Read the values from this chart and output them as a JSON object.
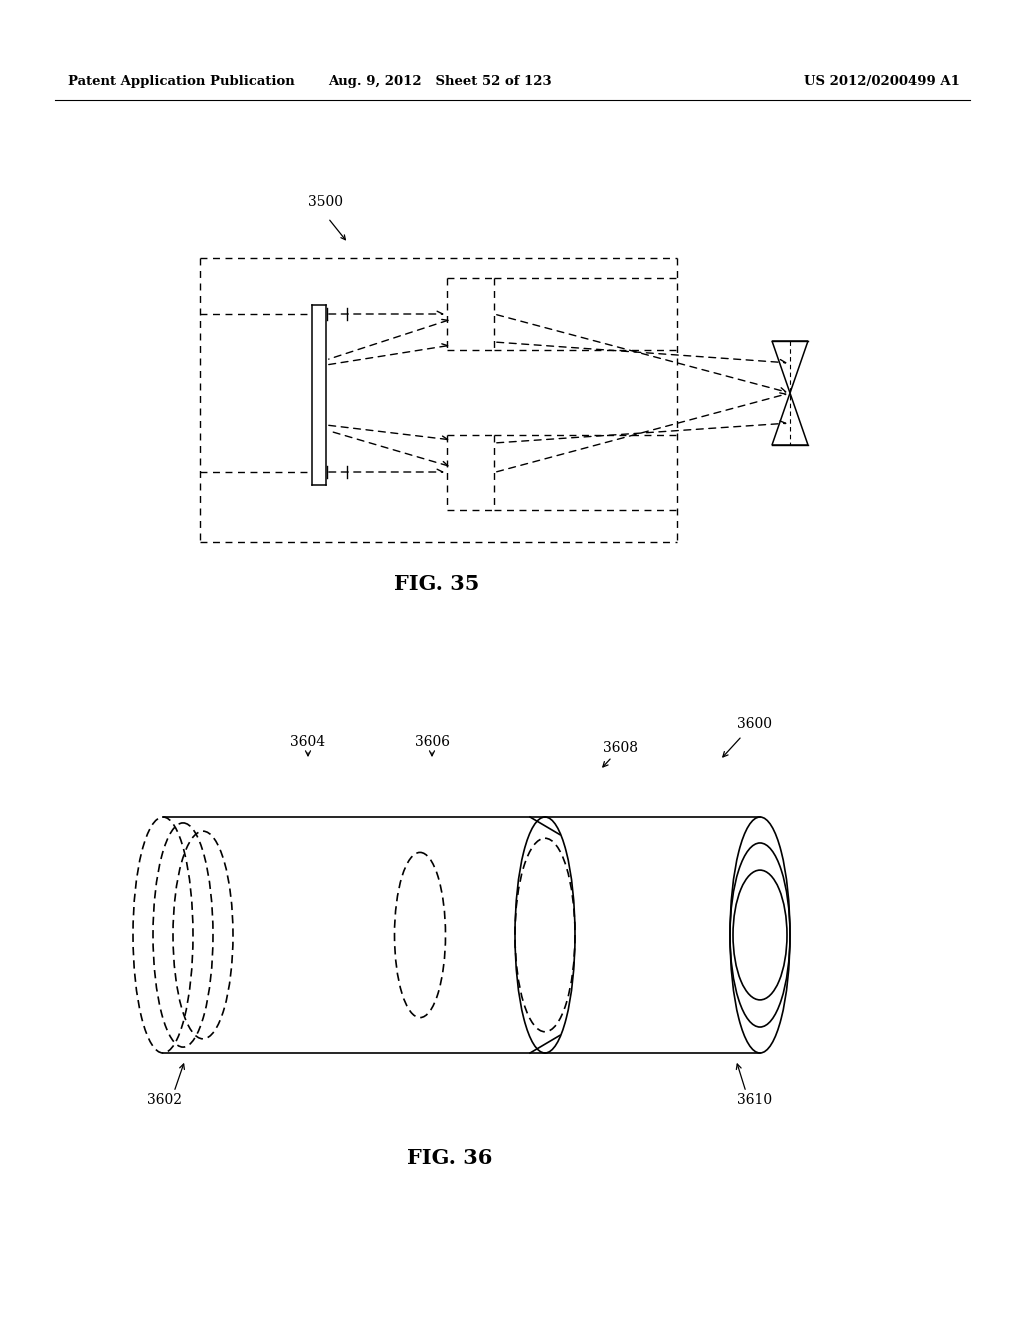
{
  "bg_color": "#ffffff",
  "header_left": "Patent Application Publication",
  "header_mid": "Aug. 9, 2012   Sheet 52 of 123",
  "header_right": "US 2012/0200499 A1",
  "fig35_caption": "FIG. 35",
  "fig36_caption": "FIG. 36",
  "label_3500": "3500",
  "label_3600": "3600",
  "label_3602": "3602",
  "label_3604": "3604",
  "label_3606": "3606",
  "label_3608": "3608",
  "label_3610": "3610"
}
